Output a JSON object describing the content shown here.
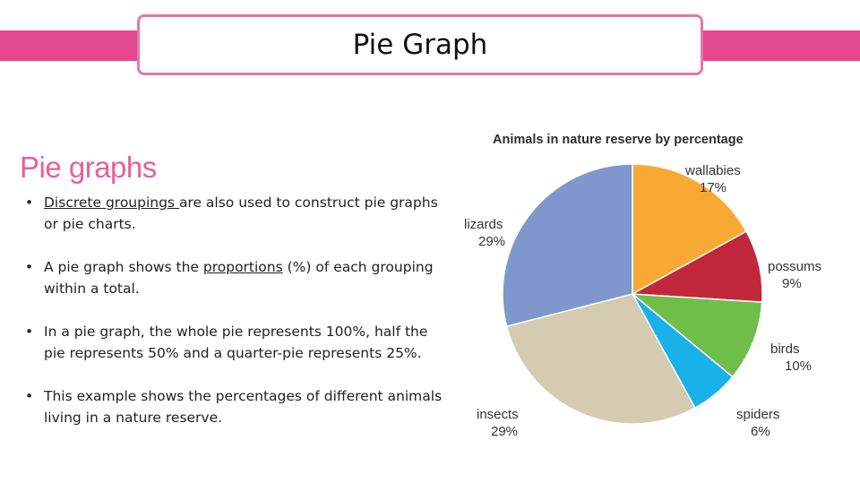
{
  "slide": {
    "title": "Pie Graph",
    "heading": "Pie graphs",
    "accent_color": "#e5488f",
    "heading_color": "#e85f9c"
  },
  "bullets": [
    {
      "parts": [
        {
          "text": "Discrete groupings ",
          "u": true
        },
        {
          "text": "are also used to construct pie graphs or pie charts.",
          "u": false
        }
      ]
    },
    {
      "parts": [
        {
          "text": "A pie graph shows the ",
          "u": false
        },
        {
          "text": "proportions",
          "u": true
        },
        {
          "text": " (%) of each grouping within a total.",
          "u": false
        }
      ]
    },
    {
      "parts": [
        {
          "text": "In a pie graph, the whole pie represents 100%, half the pie represents 50% and a quarter-pie represents 25%.",
          "u": false
        }
      ]
    },
    {
      "parts": [
        {
          "text": "This example shows the percentages of different animals living in a nature reserve.",
          "u": false
        }
      ]
    }
  ],
  "chart_data": {
    "type": "pie",
    "title": "Animals in nature reserve by percentage",
    "unit": "%",
    "slices": [
      {
        "label": "wallabies",
        "value": 17,
        "color": "#f7a933"
      },
      {
        "label": "possums",
        "value": 9,
        "color": "#c2283b"
      },
      {
        "label": "birds",
        "value": 10,
        "color": "#6fbe4a"
      },
      {
        "label": "spiders",
        "value": 6,
        "color": "#19b1e8"
      },
      {
        "label": "insects",
        "value": 29,
        "color": "#d5cbb0"
      },
      {
        "label": "lizards",
        "value": 29,
        "color": "#7f97cc"
      }
    ]
  }
}
